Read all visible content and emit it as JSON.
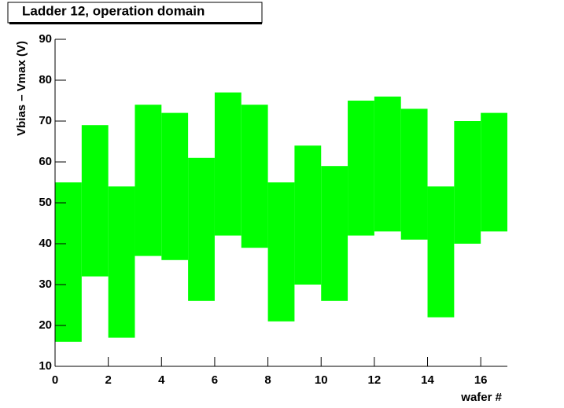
{
  "chart_data": {
    "type": "range-bar",
    "title": "Ladder 12, operation domain",
    "x_label": "wafer #",
    "y_label": "Vbias – Vmax (V)",
    "bins": [
      0,
      1,
      2,
      3,
      4,
      5,
      6,
      7,
      8,
      9,
      10,
      11,
      12,
      13,
      14,
      15,
      16,
      17
    ],
    "lows": [
      16,
      32,
      17,
      37,
      36,
      26,
      42,
      39,
      21,
      30,
      26,
      42,
      43,
      41,
      22,
      40,
      43
    ],
    "highs": [
      55,
      69,
      54,
      74,
      72,
      61,
      77,
      74,
      55,
      64,
      59,
      75,
      76,
      73,
      54,
      70,
      72
    ],
    "color": "#00ff00",
    "xlim": [
      0,
      17
    ],
    "xticks": [
      0,
      2,
      4,
      6,
      8,
      10,
      12,
      14,
      16
    ],
    "ylim": [
      10,
      90
    ],
    "yticks": [
      10,
      20,
      30,
      40,
      50,
      60,
      70,
      80,
      90
    ]
  }
}
